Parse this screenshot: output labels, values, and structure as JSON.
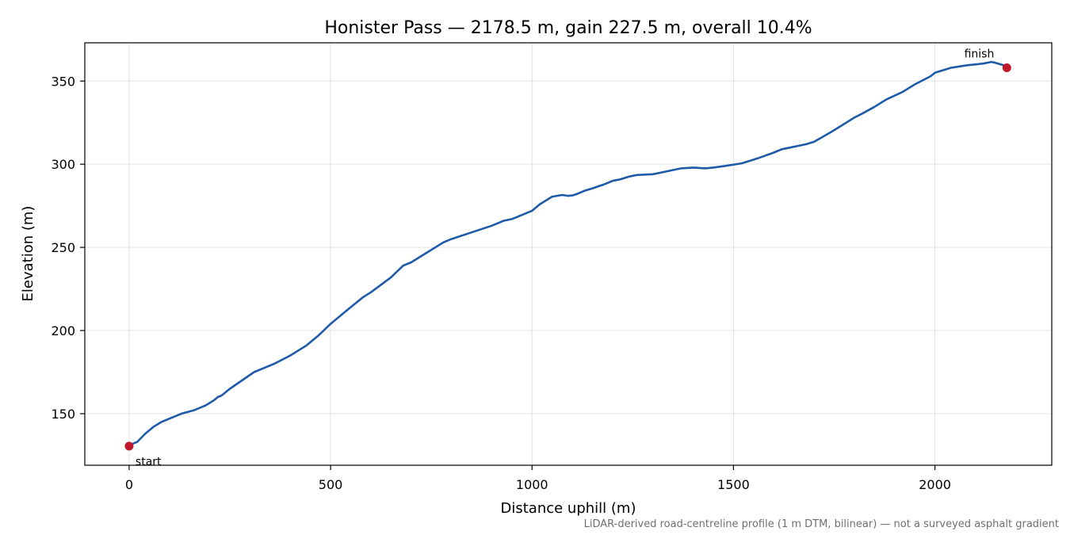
{
  "chart_data": {
    "type": "line",
    "title": "Honister Pass — 2178.5 m, gain 227.5 m, overall 10.4%",
    "xlabel": "Distance uphill (m)",
    "ylabel": "Elevation (m)",
    "xlim": [
      -110,
      2290
    ],
    "ylim": [
      119,
      373
    ],
    "xticks": [
      0,
      500,
      1000,
      1500,
      2000
    ],
    "yticks": [
      150,
      200,
      250,
      300,
      350
    ],
    "grid": true,
    "footnote": "LiDAR-derived road-centreline profile (1 m DTM, bilinear) — not a surveyed asphalt gradient",
    "colors": {
      "line": "#1f5aa8",
      "marker": "#c0182a"
    },
    "series": [
      {
        "x": [
          0,
          20,
          40,
          60,
          80,
          100,
          130,
          160,
          190,
          210,
          220,
          230,
          250,
          280,
          310,
          340,
          360,
          400,
          440,
          470,
          500,
          540,
          580,
          600,
          650,
          680,
          700,
          740,
          780,
          800,
          850,
          900,
          930,
          950,
          1000,
          1020,
          1050,
          1075,
          1090,
          1100,
          1110,
          1130,
          1150,
          1180,
          1200,
          1220,
          1240,
          1260,
          1300,
          1340,
          1370,
          1400,
          1430,
          1450,
          1480,
          1520,
          1540,
          1560,
          1600,
          1620,
          1640,
          1680,
          1700,
          1740,
          1760,
          1800,
          1820,
          1850,
          1880,
          1920,
          1950,
          1990,
          2000,
          2040,
          2080,
          2100,
          2120,
          2140,
          2150,
          2170,
          2178
        ],
        "y": [
          131,
          133,
          138,
          142,
          145,
          147,
          150,
          152,
          155,
          158,
          160,
          161,
          165,
          170,
          175,
          178,
          180,
          185,
          191,
          197,
          204,
          212,
          220,
          223,
          232,
          239,
          241,
          247,
          253,
          255,
          259,
          263,
          266,
          267,
          272,
          276,
          280.5,
          281.5,
          281,
          281.2,
          282,
          284,
          285.5,
          288,
          290,
          291,
          292.5,
          293.5,
          294,
          296,
          297.5,
          298,
          297.5,
          298,
          299,
          300.5,
          302,
          303.5,
          307,
          309,
          310,
          312,
          313.5,
          319,
          322,
          328,
          330.5,
          334.5,
          339,
          343.5,
          348,
          353,
          355,
          358,
          359.5,
          360,
          360.5,
          361.5,
          361,
          359.5,
          358
        ]
      }
    ],
    "annotations": [
      {
        "label": "start",
        "x": 0,
        "y": 130.5
      },
      {
        "label": "finish",
        "x": 2178.5,
        "y": 358
      }
    ]
  }
}
